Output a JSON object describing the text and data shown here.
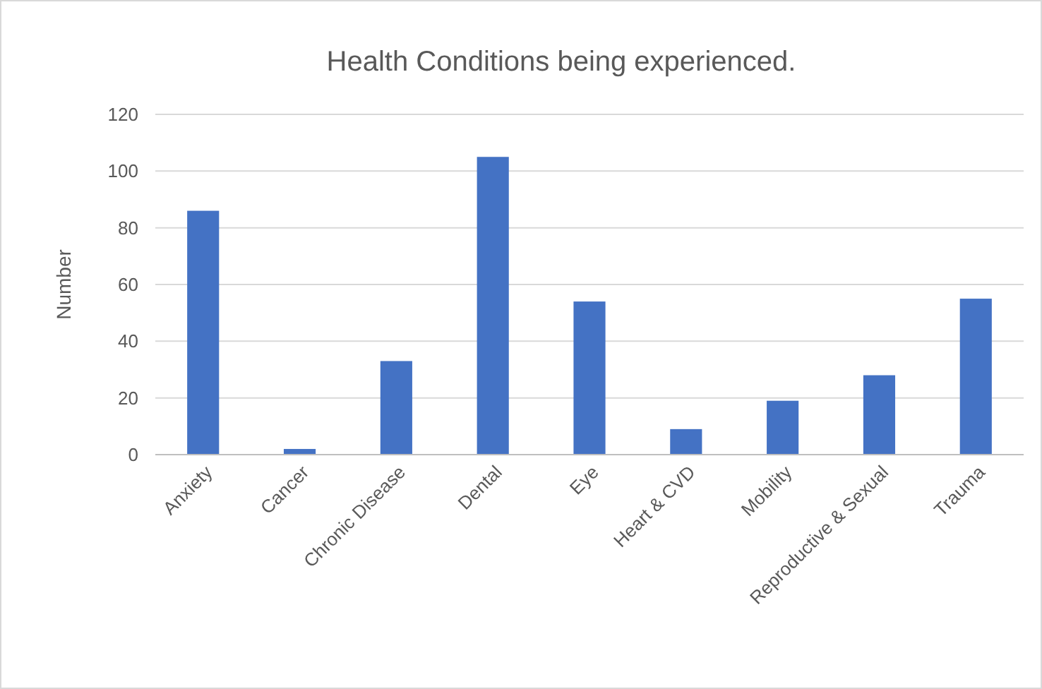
{
  "chart_data": {
    "type": "bar",
    "title": "Health Conditions being experienced.",
    "ylabel": "Number",
    "categories": [
      "Anxiety",
      "Cancer",
      "Chronic Disease",
      "Dental",
      "Eye",
      "Heart & CVD",
      "Mobility",
      "Reproductive & Sexual",
      "Trauma"
    ],
    "values": [
      86,
      2,
      33,
      105,
      54,
      9,
      19,
      28,
      55
    ],
    "color": "#4472c4",
    "ylim": [
      0,
      120
    ],
    "yticks": [
      0,
      20,
      40,
      60,
      80,
      100,
      120
    ],
    "grid": "y"
  }
}
